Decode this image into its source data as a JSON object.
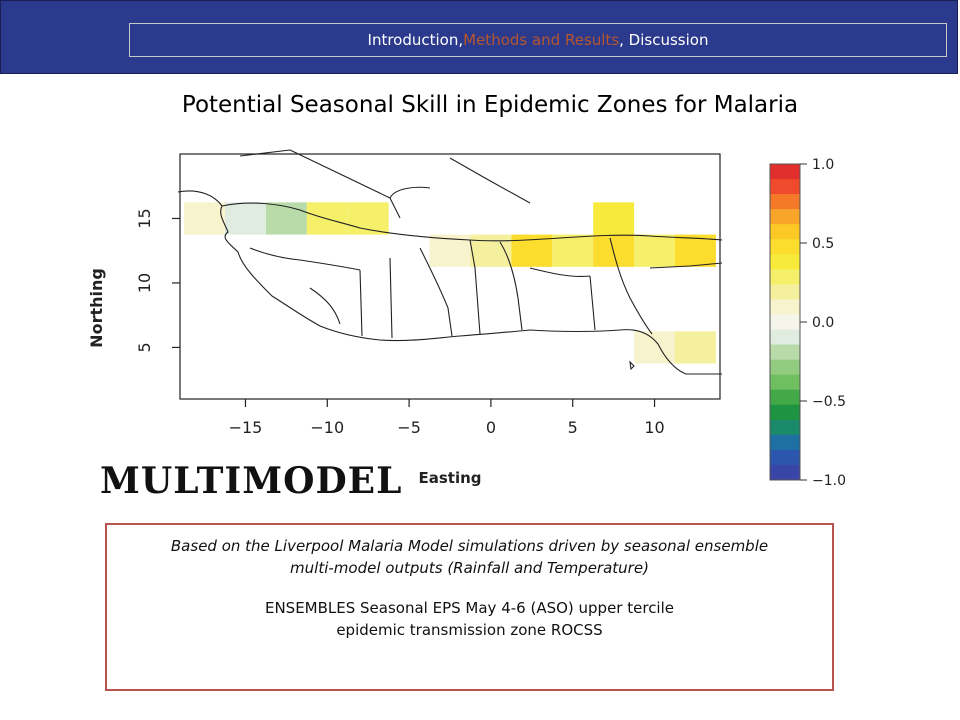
{
  "header": {
    "parts": [
      "Introduction, ",
      "Methods and Results",
      ", Discussion"
    ]
  },
  "title": "Potential Seasonal Skill in Epidemic Zones for Malaria",
  "model_label": "MULTIMODEL",
  "caption": {
    "line1": "Based on the Liverpool Malaria Model simulations driven by seasonal ensemble",
    "line2": "multi-model outputs (Rainfall and Temperature)",
    "line3": "ENSEMBLES Seasonal EPS May 4-6 (ASO) upper tercile",
    "line4": "epidemic transmission zone ROCSS"
  },
  "colors": {
    "header_bg": "#2b3a8c",
    "header_highlight": "#b5562e",
    "caption_border": "#b85450"
  },
  "chart_data": {
    "type": "heatmap",
    "xlabel": "Easting",
    "ylabel": "Northing",
    "xlim": [
      -19,
      14
    ],
    "ylim": [
      1,
      20
    ],
    "x_ticks": [
      -15,
      -10,
      -5,
      0,
      5,
      10
    ],
    "y_ticks": [
      5,
      10,
      15
    ],
    "x_tick_labels": [
      "−15",
      "−10",
      "−5",
      "0",
      "5",
      "10"
    ],
    "y_tick_labels": [
      "5",
      "10",
      "15"
    ],
    "cell_size_deg": 2.5,
    "cells": [
      {
        "x0": -18.75,
        "y0": 13.75,
        "value": 0.05
      },
      {
        "x0": -16.25,
        "y0": 13.75,
        "value": -0.05
      },
      {
        "x0": -13.75,
        "y0": 13.75,
        "value": -0.2
      },
      {
        "x0": -11.25,
        "y0": 13.75,
        "value": 0.25
      },
      {
        "x0": -8.75,
        "y0": 13.75,
        "value": 0.25
      },
      {
        "x0": 6.25,
        "y0": 13.75,
        "value": 0.35
      },
      {
        "x0": -3.75,
        "y0": 11.25,
        "value": 0.05
      },
      {
        "x0": -1.25,
        "y0": 11.25,
        "value": 0.15
      },
      {
        "x0": 1.25,
        "y0": 11.25,
        "value": 0.5
      },
      {
        "x0": 3.75,
        "y0": 11.25,
        "value": 0.3
      },
      {
        "x0": 6.25,
        "y0": 11.25,
        "value": 0.45
      },
      {
        "x0": 8.75,
        "y0": 11.25,
        "value": 0.25
      },
      {
        "x0": 11.25,
        "y0": 11.25,
        "value": 0.45
      },
      {
        "x0": 8.75,
        "y0": 3.75,
        "value": 0.08
      },
      {
        "x0": 11.25,
        "y0": 3.75,
        "value": 0.15
      }
    ],
    "colorbar": {
      "min": -1.0,
      "max": 1.0,
      "tick_values": [
        1.0,
        0.5,
        0.0,
        -0.5,
        -1.0
      ],
      "tick_labels": [
        "1.0",
        "0.5",
        "0.0",
        "−0.5",
        "−1.0"
      ],
      "colors": [
        "#e32e2e",
        "#ef4a2c",
        "#f47a2a",
        "#f8a52a",
        "#fbc825",
        "#fcdc2c",
        "#f8ea3a",
        "#f5ef6a",
        "#f5f09e",
        "#f7f3cc",
        "#f5f5ec",
        "#e0ecdf",
        "#b9dba9",
        "#93cc80",
        "#6fbf60",
        "#43a848",
        "#1e9442",
        "#1a8a6a",
        "#1e6fa2",
        "#2c56ae",
        "#3a45a8"
      ]
    }
  }
}
